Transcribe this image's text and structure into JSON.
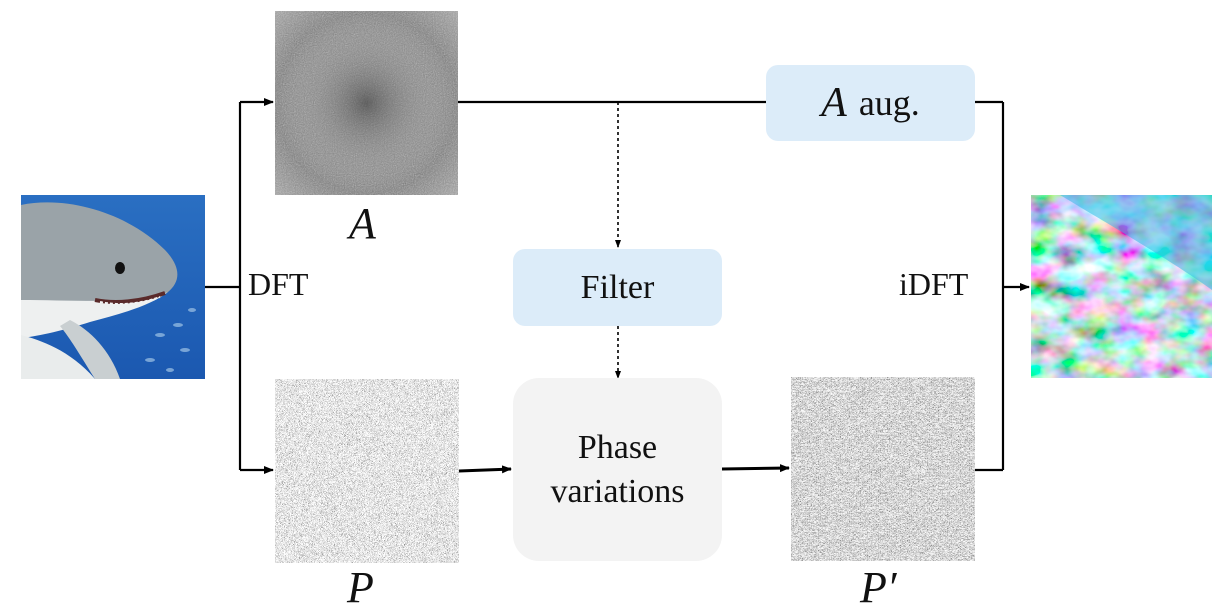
{
  "labels": {
    "amplitude": "A",
    "phase": "P",
    "phase_prime": "P′",
    "dft": "DFT",
    "idft": "iDFT"
  },
  "boxes": {
    "amp_aug_sym": "A",
    "amp_aug_text": "aug.",
    "filter": "Filter",
    "phase_var_line1": "Phase",
    "phase_var_line2": "variations"
  },
  "colors": {
    "box_blue": "#dcecf9",
    "box_gray": "#f3f3f3",
    "line": "#000000"
  }
}
